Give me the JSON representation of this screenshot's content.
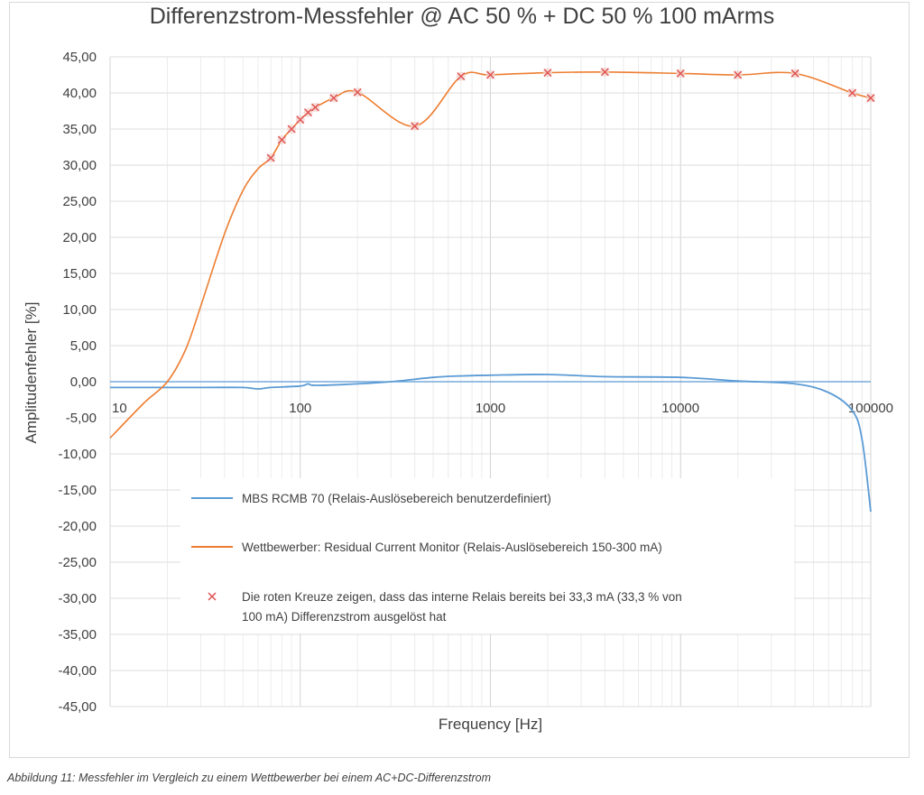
{
  "chart_data": {
    "type": "line",
    "title": "Differenzstrom-Messfehler @ AC 50 % + DC 50 % 100 mArms",
    "xlabel": "Frequency [Hz]",
    "ylabel": "Amplitudenfehler [%]",
    "xscale": "log",
    "xlim": [
      10,
      100000
    ],
    "ylim": [
      -45,
      45
    ],
    "xticks": [
      "10",
      "100",
      "1000",
      "10000",
      "100000"
    ],
    "yticks": [
      "45,00",
      "40,00",
      "35,00",
      "30,00",
      "25,00",
      "20,00",
      "15,00",
      "10,00",
      "5,00",
      "0,00",
      "-5,00",
      "-10,00",
      "-15,00",
      "-20,00",
      "-25,00",
      "-30,00",
      "-35,00",
      "-40,00",
      "-45,00"
    ],
    "grid": true,
    "legend_placement": "center-bottom",
    "series": [
      {
        "name": "MBS RCMB 70 (Relais-Auslösebereich benutzerdefiniert)",
        "color": "#5b9bd5",
        "x": [
          10,
          30,
          50,
          60,
          70,
          100,
          110,
          120,
          200,
          300,
          500,
          700,
          1000,
          2000,
          4000,
          10000,
          20000,
          40000,
          60000,
          80000,
          90000,
          100000
        ],
        "y": [
          -0.8,
          -0.8,
          -0.8,
          -1.0,
          -0.8,
          -0.6,
          -0.3,
          -0.5,
          -0.3,
          0.0,
          0.6,
          0.8,
          0.9,
          1.0,
          0.7,
          0.6,
          0.1,
          -0.3,
          -1.5,
          -4.0,
          -8.0,
          -18.0
        ]
      },
      {
        "name": "Wettbewerber: Residual Current Monitor (Relais-Auslösebereich 150-300 mA)",
        "color": "#ed7d31",
        "x": [
          10,
          15,
          20,
          25,
          30,
          40,
          50,
          60,
          70,
          80,
          90,
          100,
          110,
          120,
          150,
          200,
          400,
          700,
          1000,
          2000,
          4000,
          10000,
          20000,
          40000,
          80000,
          100000
        ],
        "y": [
          -7.8,
          -3.0,
          0.0,
          4.5,
          10.5,
          20.5,
          26.5,
          29.5,
          31.0,
          33.5,
          35.0,
          36.3,
          37.3,
          38.0,
          39.3,
          40.1,
          35.4,
          42.3,
          42.5,
          42.8,
          42.9,
          42.7,
          42.5,
          42.7,
          40.0,
          39.3
        ]
      },
      {
        "name": "Die roten Kreuze zeigen, dass das interne Relais bereits bei 33,3 mA (33,3 % von 100 mA) Differenzstrom ausgelöst hat",
        "color": "#e05050",
        "marker": "x",
        "x": [
          70,
          80,
          90,
          100,
          110,
          120,
          150,
          200,
          400,
          700,
          1000,
          2000,
          4000,
          10000,
          20000,
          40000,
          80000,
          100000
        ],
        "y": [
          31.0,
          33.5,
          35.0,
          36.3,
          37.3,
          38.0,
          39.3,
          40.1,
          35.4,
          42.3,
          42.5,
          42.8,
          42.9,
          42.7,
          42.5,
          42.7,
          40.0,
          39.3
        ]
      }
    ],
    "legend": {
      "line1": "MBS RCMB 70 (Relais-Auslösebereich benutzerdefiniert)",
      "line2": "Wettbewerber: Residual Current Monitor (Relais-Auslösebereich 150-300 mA)",
      "line3a": "Die roten Kreuze zeigen, dass das interne Relais bereits bei 33,3 mA (33,3 % von",
      "line3b": "100 mA) Differenzstrom ausgelöst hat"
    }
  },
  "caption": "Abbildung 11: Messfehler im Vergleich zu einem Wettbewerber bei einem AC+DC-Differenzstrom"
}
